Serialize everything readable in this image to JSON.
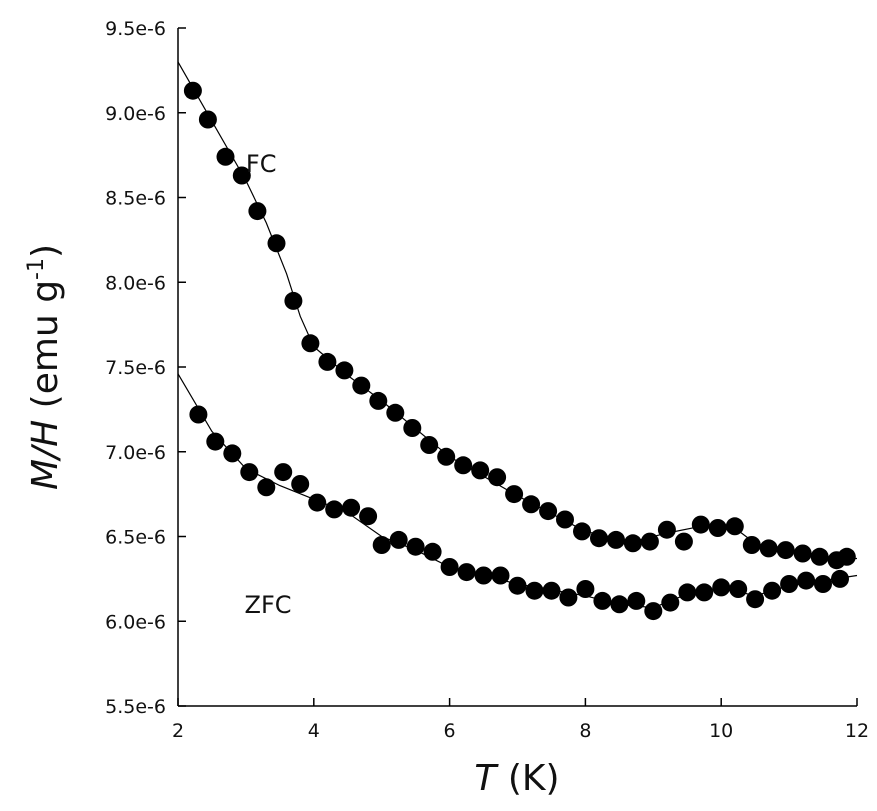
{
  "chart_data": {
    "type": "scatter",
    "title": "",
    "xlabel_italic": "T",
    "xlabel_unit": " (K)",
    "ylabel_italic": "M/H",
    "ylabel_unit_pre": " (emu g",
    "ylabel_unit_sup": "-1",
    "ylabel_unit_post": ")",
    "xlim": [
      2,
      12
    ],
    "ylim": [
      5.5e-06,
      9.5e-06
    ],
    "x_ticks": [
      {
        "value": 2,
        "label": "2"
      },
      {
        "value": 4,
        "label": "4"
      },
      {
        "value": 6,
        "label": "6"
      },
      {
        "value": 8,
        "label": "8"
      },
      {
        "value": 10,
        "label": "10"
      },
      {
        "value": 12,
        "label": "12"
      }
    ],
    "y_ticks": [
      {
        "value": 5.5e-06,
        "label": "5.5e-6"
      },
      {
        "value": 6e-06,
        "label": "6.0e-6"
      },
      {
        "value": 6.5e-06,
        "label": "6.5e-6"
      },
      {
        "value": 7e-06,
        "label": "7.0e-6"
      },
      {
        "value": 7.5e-06,
        "label": "7.5e-6"
      },
      {
        "value": 8e-06,
        "label": "8.0e-6"
      },
      {
        "value": 8.5e-06,
        "label": "8.5e-6"
      },
      {
        "value": 9e-06,
        "label": "9.0e-6"
      },
      {
        "value": 9.5e-06,
        "label": "9.5e-6"
      }
    ],
    "grid": false,
    "legend": "none",
    "series": [
      {
        "name": "FC",
        "label_at": [
          3.0,
          8.65e-06
        ],
        "marker_color": "#000000",
        "points": [
          [
            2.22,
            9.13e-06
          ],
          [
            2.44,
            8.96e-06
          ],
          [
            2.7,
            8.74e-06
          ],
          [
            2.94,
            8.63e-06
          ],
          [
            3.17,
            8.42e-06
          ],
          [
            3.45,
            8.23e-06
          ],
          [
            3.7,
            7.89e-06
          ],
          [
            3.95,
            7.64e-06
          ],
          [
            4.2,
            7.53e-06
          ],
          [
            4.45,
            7.48e-06
          ],
          [
            4.7,
            7.39e-06
          ],
          [
            4.95,
            7.3e-06
          ],
          [
            5.2,
            7.23e-06
          ],
          [
            5.45,
            7.14e-06
          ],
          [
            5.7,
            7.04e-06
          ],
          [
            5.95,
            6.97e-06
          ],
          [
            6.2,
            6.92e-06
          ],
          [
            6.45,
            6.89e-06
          ],
          [
            6.7,
            6.85e-06
          ],
          [
            6.95,
            6.75e-06
          ],
          [
            7.2,
            6.69e-06
          ],
          [
            7.45,
            6.65e-06
          ],
          [
            7.7,
            6.6e-06
          ],
          [
            7.95,
            6.53e-06
          ],
          [
            8.2,
            6.49e-06
          ],
          [
            8.45,
            6.48e-06
          ],
          [
            8.7,
            6.46e-06
          ],
          [
            8.95,
            6.47e-06
          ],
          [
            9.2,
            6.54e-06
          ],
          [
            9.45,
            6.47e-06
          ],
          [
            9.7,
            6.57e-06
          ],
          [
            9.95,
            6.55e-06
          ],
          [
            10.2,
            6.56e-06
          ],
          [
            10.45,
            6.45e-06
          ],
          [
            10.7,
            6.43e-06
          ],
          [
            10.95,
            6.42e-06
          ],
          [
            11.2,
            6.4e-06
          ],
          [
            11.45,
            6.38e-06
          ],
          [
            11.7,
            6.36e-06
          ],
          [
            11.85,
            6.38e-06
          ]
        ],
        "fit": [
          [
            2.0,
            9.3e-06
          ],
          [
            2.5,
            8.95e-06
          ],
          [
            3.0,
            8.6e-06
          ],
          [
            3.3,
            8.35e-06
          ],
          [
            3.6,
            8.05e-06
          ],
          [
            3.8,
            7.8e-06
          ],
          [
            4.0,
            7.62e-06
          ],
          [
            4.5,
            7.45e-06
          ],
          [
            5.0,
            7.3e-06
          ],
          [
            6.0,
            6.97e-06
          ],
          [
            7.0,
            6.74e-06
          ],
          [
            8.0,
            6.53e-06
          ],
          [
            8.7,
            6.47e-06
          ],
          [
            9.2,
            6.52e-06
          ],
          [
            9.7,
            6.56e-06
          ],
          [
            10.2,
            6.55e-06
          ],
          [
            10.5,
            6.46e-06
          ],
          [
            11.0,
            6.41e-06
          ],
          [
            11.5,
            6.37e-06
          ],
          [
            12.0,
            6.37e-06
          ]
        ]
      },
      {
        "name": "ZFC",
        "label_at": [
          2.98,
          6.05e-06
        ],
        "marker_color": "#000000",
        "points": [
          [
            2.3,
            7.22e-06
          ],
          [
            2.55,
            7.06e-06
          ],
          [
            2.8,
            6.99e-06
          ],
          [
            3.05,
            6.88e-06
          ],
          [
            3.3,
            6.79e-06
          ],
          [
            3.55,
            6.88e-06
          ],
          [
            3.8,
            6.81e-06
          ],
          [
            4.05,
            6.7e-06
          ],
          [
            4.3,
            6.66e-06
          ],
          [
            4.55,
            6.67e-06
          ],
          [
            4.8,
            6.62e-06
          ],
          [
            5.0,
            6.45e-06
          ],
          [
            5.25,
            6.48e-06
          ],
          [
            5.5,
            6.44e-06
          ],
          [
            5.75,
            6.41e-06
          ],
          [
            6.0,
            6.32e-06
          ],
          [
            6.25,
            6.29e-06
          ],
          [
            6.5,
            6.27e-06
          ],
          [
            6.75,
            6.27e-06
          ],
          [
            7.0,
            6.21e-06
          ],
          [
            7.25,
            6.18e-06
          ],
          [
            7.5,
            6.18e-06
          ],
          [
            7.75,
            6.14e-06
          ],
          [
            8.0,
            6.19e-06
          ],
          [
            8.25,
            6.12e-06
          ],
          [
            8.5,
            6.1e-06
          ],
          [
            8.75,
            6.12e-06
          ],
          [
            9.0,
            6.06e-06
          ],
          [
            9.25,
            6.11e-06
          ],
          [
            9.5,
            6.17e-06
          ],
          [
            9.75,
            6.17e-06
          ],
          [
            10.0,
            6.2e-06
          ],
          [
            10.25,
            6.19e-06
          ],
          [
            10.5,
            6.13e-06
          ],
          [
            10.75,
            6.18e-06
          ],
          [
            11.0,
            6.22e-06
          ],
          [
            11.25,
            6.24e-06
          ],
          [
            11.5,
            6.22e-06
          ],
          [
            11.75,
            6.25e-06
          ]
        ],
        "fit": [
          [
            2.0,
            7.46e-06
          ],
          [
            2.5,
            7.12e-06
          ],
          [
            3.0,
            6.9e-06
          ],
          [
            3.5,
            6.8e-06
          ],
          [
            4.0,
            6.72e-06
          ],
          [
            4.5,
            6.64e-06
          ],
          [
            5.0,
            6.5e-06
          ],
          [
            5.5,
            6.42e-06
          ],
          [
            6.0,
            6.32e-06
          ],
          [
            7.0,
            6.22e-06
          ],
          [
            8.0,
            6.15e-06
          ],
          [
            8.5,
            6.1e-06
          ],
          [
            9.0,
            6.08e-06
          ],
          [
            9.5,
            6.16e-06
          ],
          [
            10.0,
            6.2e-06
          ],
          [
            10.5,
            6.15e-06
          ],
          [
            11.0,
            6.21e-06
          ],
          [
            11.5,
            6.24e-06
          ],
          [
            12.0,
            6.27e-06
          ]
        ]
      }
    ]
  }
}
